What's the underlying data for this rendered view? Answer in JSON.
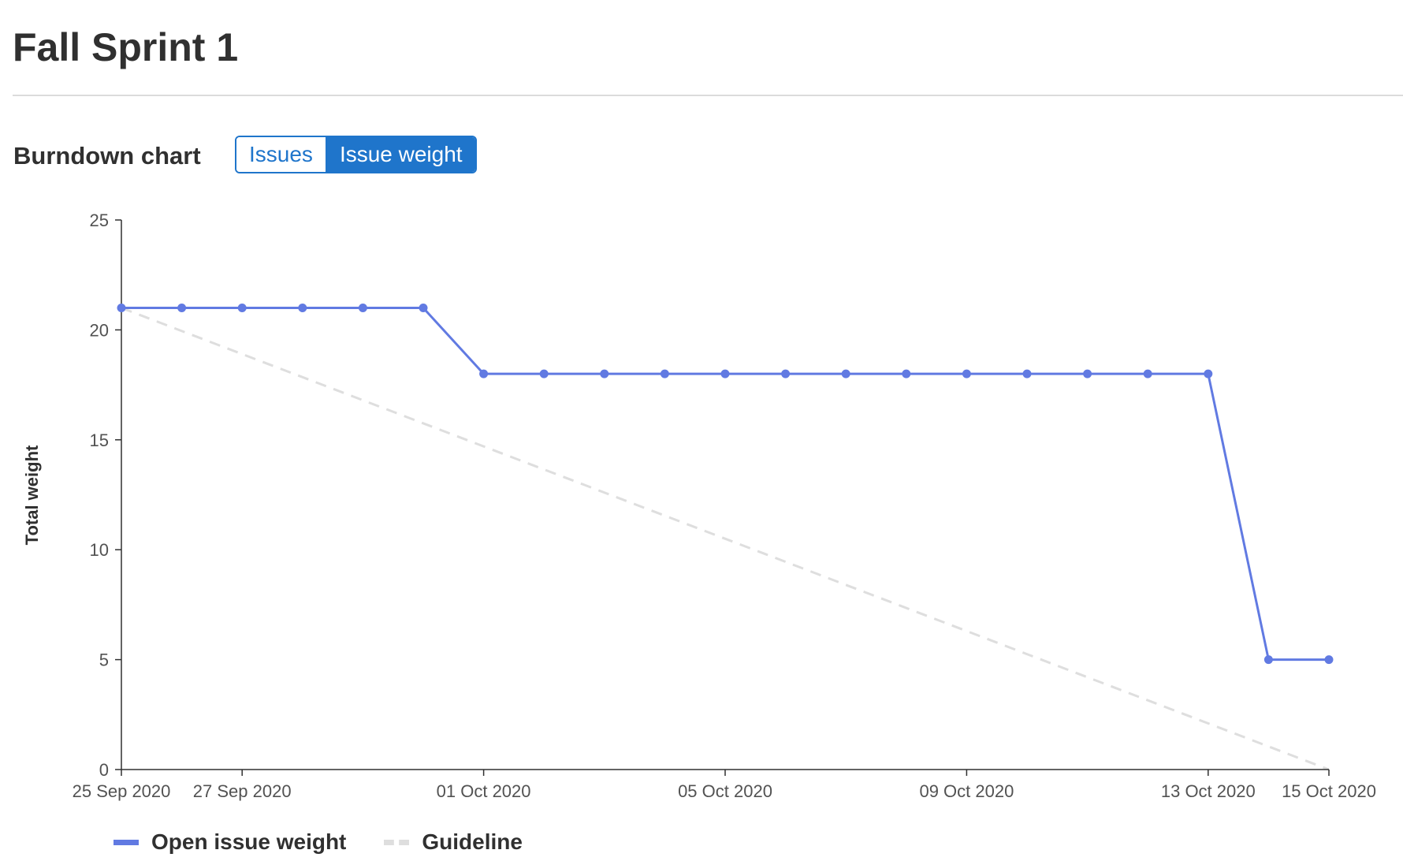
{
  "page": {
    "title": "Fall Sprint 1"
  },
  "burndown": {
    "heading": "Burndown chart",
    "toggle": {
      "issues_label": "Issues",
      "weight_label": "Issue weight",
      "selected": "Issue weight"
    },
    "legend": {
      "open_label": "Open issue weight",
      "guideline_label": "Guideline"
    }
  },
  "colors": {
    "series": "#617ae2",
    "guideline": "#dedede",
    "accent": "#1f75cb",
    "axis": "#303030"
  },
  "chart_data": {
    "type": "line",
    "title": "",
    "xlabel": "",
    "ylabel": "Total weight",
    "ylim": [
      0,
      25
    ],
    "yticks": [
      0,
      5,
      10,
      15,
      20,
      25
    ],
    "xlim": [
      "2020-09-25",
      "2020-10-15"
    ],
    "xtick_dates": [
      "2020-09-25",
      "2020-09-27",
      "2020-10-01",
      "2020-10-05",
      "2020-10-09",
      "2020-10-13",
      "2020-10-15"
    ],
    "xtick_labels": [
      "25 Sep 2020",
      "27 Sep 2020",
      "01 Oct 2020",
      "05 Oct 2020",
      "09 Oct 2020",
      "13 Oct 2020",
      "15 Oct 2020"
    ],
    "grid": false,
    "legend_position": "bottom-left",
    "series": [
      {
        "name": "Open issue weight",
        "style": "solid-with-markers",
        "x": [
          "2020-09-25",
          "2020-09-26",
          "2020-09-27",
          "2020-09-28",
          "2020-09-29",
          "2020-09-30",
          "2020-10-01",
          "2020-10-02",
          "2020-10-03",
          "2020-10-04",
          "2020-10-05",
          "2020-10-06",
          "2020-10-07",
          "2020-10-08",
          "2020-10-09",
          "2020-10-10",
          "2020-10-11",
          "2020-10-12",
          "2020-10-13",
          "2020-10-14",
          "2020-10-15"
        ],
        "y": [
          21,
          21,
          21,
          21,
          21,
          21,
          18,
          18,
          18,
          18,
          18,
          18,
          18,
          18,
          18,
          18,
          18,
          18,
          18,
          5,
          5
        ]
      },
      {
        "name": "Guideline",
        "style": "dashed",
        "x": [
          "2020-09-25",
          "2020-10-15"
        ],
        "y": [
          21,
          0
        ]
      }
    ]
  }
}
